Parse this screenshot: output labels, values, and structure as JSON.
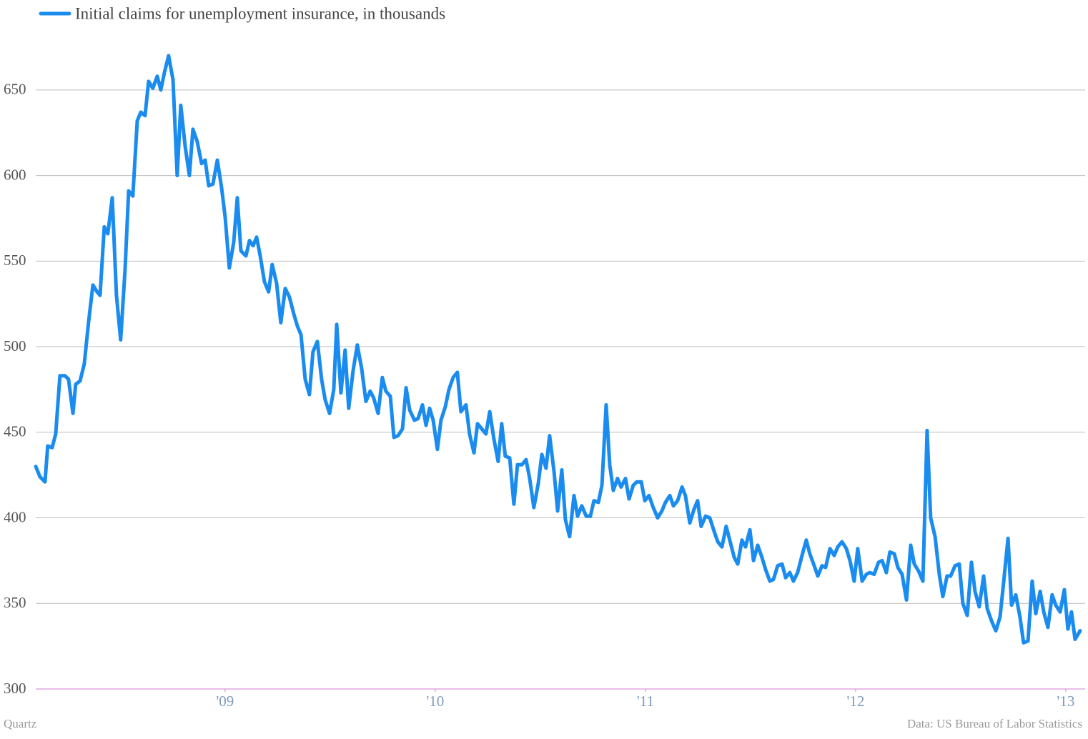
{
  "chart_data": {
    "type": "line",
    "credit": "Quartz",
    "source": "Data: US Bureau of Labor Statistics",
    "grid": true,
    "legend": "top-left",
    "xlim": [
      2008.099,
      2013.092
    ],
    "xticks": [
      {
        "value": 2009,
        "label": "'09"
      },
      {
        "value": 2010,
        "label": "'10"
      },
      {
        "value": 2011,
        "label": "'11"
      },
      {
        "value": 2012,
        "label": "'12"
      },
      {
        "value": 2013,
        "label": "'13"
      }
    ],
    "ylim": [
      300,
      680
    ],
    "yticks": [
      300,
      350,
      400,
      450,
      500,
      550,
      600,
      650
    ],
    "x": [
      2008.099,
      2008.119,
      2008.143,
      2008.156,
      2008.177,
      2008.194,
      2008.214,
      2008.238,
      2008.255,
      2008.276,
      2008.289,
      2008.31,
      2008.33,
      2008.35,
      2008.371,
      2008.391,
      2008.405,
      2008.425,
      2008.442,
      2008.463,
      2008.483,
      2008.503,
      2008.524,
      2008.541,
      2008.561,
      2008.582,
      2008.599,
      2008.619,
      2008.636,
      2008.656,
      2008.677,
      2008.694,
      2008.711,
      2008.731,
      2008.752,
      2008.772,
      2008.789,
      2008.81,
      2008.83,
      2008.847,
      2008.867,
      2008.888,
      2008.905,
      2008.922,
      2008.942,
      2008.963,
      2008.983,
      2009.0,
      2009.02,
      2009.041,
      2009.058,
      2009.075,
      2009.099,
      2009.116,
      2009.133,
      2009.15,
      2009.167,
      2009.187,
      2009.207,
      2009.224,
      2009.245,
      2009.265,
      2009.286,
      2009.306,
      2009.327,
      2009.344,
      2009.361,
      2009.381,
      2009.401,
      2009.418,
      2009.439,
      2009.459,
      2009.476,
      2009.497,
      2009.517,
      2009.531,
      2009.551,
      2009.571,
      2009.588,
      2009.609,
      2009.629,
      2009.65,
      2009.67,
      2009.69,
      2009.707,
      2009.728,
      2009.748,
      2009.765,
      2009.786,
      2009.803,
      2009.823,
      2009.844,
      2009.861,
      2009.878,
      2009.901,
      2009.918,
      2009.939,
      2009.956,
      2009.973,
      2009.99,
      2010.01,
      2010.027,
      2010.048,
      2010.065,
      2010.085,
      2010.105,
      2010.122,
      2010.146,
      2010.163,
      2010.184,
      2010.201,
      2010.221,
      2010.241,
      2010.259,
      2010.279,
      2010.299,
      2010.316,
      2010.333,
      2010.354,
      2010.374,
      2010.391,
      2010.412,
      2010.432,
      2010.449,
      2010.469,
      2010.49,
      2010.507,
      2010.527,
      2010.544,
      2010.565,
      2010.582,
      2010.602,
      2010.619,
      2010.639,
      2010.66,
      2010.677,
      2010.697,
      2010.718,
      2010.738,
      2010.755,
      2010.776,
      2010.793,
      2010.813,
      2010.83,
      2010.847,
      2010.867,
      2010.884,
      2010.905,
      2010.922,
      2010.942,
      2010.959,
      2010.98,
      2010.997,
      2011.017,
      2011.037,
      2011.058,
      2011.078,
      2011.095,
      2011.116,
      2011.133,
      2011.153,
      2011.174,
      2011.19,
      2011.211,
      2011.231,
      2011.248,
      2011.265,
      2011.286,
      2011.306,
      2011.327,
      2011.344,
      2011.364,
      2011.384,
      2011.401,
      2011.422,
      2011.439,
      2011.459,
      2011.476,
      2011.497,
      2011.514,
      2011.534,
      2011.554,
      2011.571,
      2011.592,
      2011.609,
      2011.629,
      2011.65,
      2011.667,
      2011.687,
      2011.704,
      2011.724,
      2011.745,
      2011.765,
      2011.782,
      2011.803,
      2011.82,
      2011.84,
      2011.857,
      2011.878,
      2011.898,
      2011.915,
      2011.935,
      2011.956,
      2011.973,
      2011.993,
      2012.01,
      2012.031,
      2012.051,
      2012.068,
      2012.088,
      2012.109,
      2012.126,
      2012.146,
      2012.163,
      2012.184,
      2012.201,
      2012.221,
      2012.242,
      2012.262,
      2012.279,
      2012.299,
      2012.32,
      2012.34,
      2012.357,
      2012.378,
      2012.398,
      2012.415,
      2012.435,
      2012.452,
      2012.473,
      2012.493,
      2012.51,
      2012.531,
      2012.551,
      2012.568,
      2012.588,
      2012.609,
      2012.626,
      2012.646,
      2012.667,
      2012.687,
      2012.704,
      2012.725,
      2012.742,
      2012.762,
      2012.782,
      2012.799,
      2012.82,
      2012.84,
      2012.857,
      2012.878,
      2012.895,
      2012.915,
      2012.935,
      2012.952,
      2012.973,
      2012.993,
      2013.01,
      2013.027,
      2013.044,
      2013.068
    ],
    "series": [
      {
        "name": "Initial claims for unemployment insurance, in thousands",
        "color": "#1a8cf0",
        "values": [
          430,
          424,
          421,
          442,
          441,
          449,
          483,
          483,
          481,
          461,
          478,
          480,
          490,
          514,
          536,
          532,
          530,
          570,
          566,
          587,
          530,
          504,
          545,
          591,
          588,
          632,
          637,
          635,
          655,
          651,
          658,
          650,
          660,
          670,
          656,
          600,
          641,
          617,
          600,
          627,
          620,
          607,
          609,
          594,
          595,
          609,
          593,
          576,
          546,
          561,
          587,
          556,
          553,
          562,
          559,
          564,
          553,
          538,
          532,
          548,
          537,
          514,
          534,
          529,
          519,
          512,
          507,
          481,
          472,
          497,
          503,
          481,
          469,
          461,
          475,
          513,
          473,
          498,
          464,
          486,
          501,
          487,
          468,
          474,
          470,
          461,
          482,
          474,
          471,
          447,
          448,
          452,
          476,
          463,
          457,
          458,
          466,
          454,
          464,
          457,
          440,
          457,
          465,
          475,
          482,
          485,
          462,
          466,
          449,
          438,
          455,
          452,
          449,
          462,
          446,
          433,
          455,
          436,
          435,
          408,
          431,
          431,
          434,
          423,
          406,
          420,
          437,
          429,
          448,
          427,
          404,
          428,
          399,
          389,
          413,
          401,
          407,
          401,
          401,
          410,
          409,
          419,
          466,
          431,
          416,
          423,
          418,
          423,
          411,
          419,
          421,
          421,
          410,
          413,
          406,
          400,
          404,
          409,
          413,
          407,
          410,
          418,
          413,
          397,
          405,
          410,
          395,
          401,
          400,
          392,
          386,
          383,
          395,
          387,
          377,
          373,
          387,
          383,
          393,
          375,
          384,
          377,
          370,
          363,
          364,
          372,
          373,
          365,
          368,
          363,
          368,
          378,
          387,
          379,
          372,
          366,
          372,
          371,
          382,
          378,
          383,
          386,
          382,
          375,
          363,
          382,
          363,
          367,
          368,
          367,
          374,
          375,
          368,
          380,
          379,
          371,
          367,
          352,
          384,
          373,
          369,
          363,
          451,
          400,
          389,
          367,
          354,
          366,
          366,
          372,
          373,
          350,
          343,
          374,
          357,
          348,
          366,
          347,
          340,
          334,
          342,
          362,
          388,
          349,
          355,
          342,
          327,
          328,
          363,
          344,
          357,
          345,
          336,
          355,
          349,
          345,
          358,
          335,
          345,
          329,
          334
        ]
      }
    ]
  }
}
